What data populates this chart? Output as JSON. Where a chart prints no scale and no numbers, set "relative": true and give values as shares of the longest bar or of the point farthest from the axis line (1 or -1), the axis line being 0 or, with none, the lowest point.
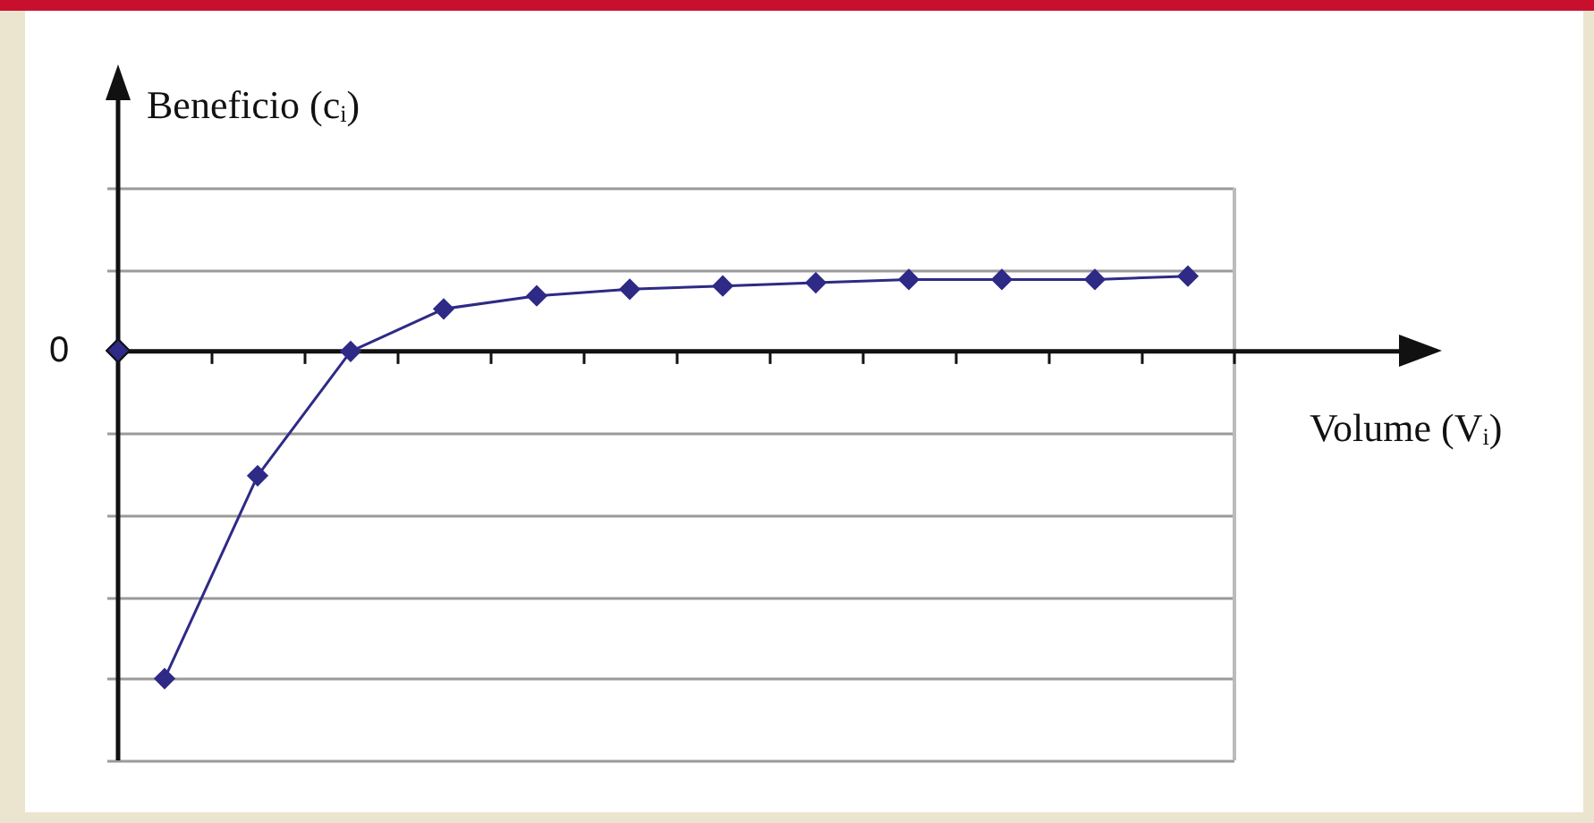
{
  "chart_data": {
    "type": "line",
    "relative": true,
    "xlabel": "Volume (Vᵢ)",
    "ylabel": "Beneficio (cᵢ)",
    "annotations": [
      "0"
    ],
    "categories": [
      null,
      null,
      null,
      null,
      null,
      null,
      null,
      null,
      null,
      null,
      null,
      null
    ],
    "series": [
      {
        "color": "#2e2a86",
        "values": [
          -1,
          -0.38,
          0,
          0.13,
          0.17,
          0.19,
          0.2,
          0.21,
          0.22,
          0.22,
          0.22,
          0.23
        ]
      }
    ],
    "grid": "y",
    "legend": false,
    "marker": "diamond",
    "line_style": "solid"
  }
}
